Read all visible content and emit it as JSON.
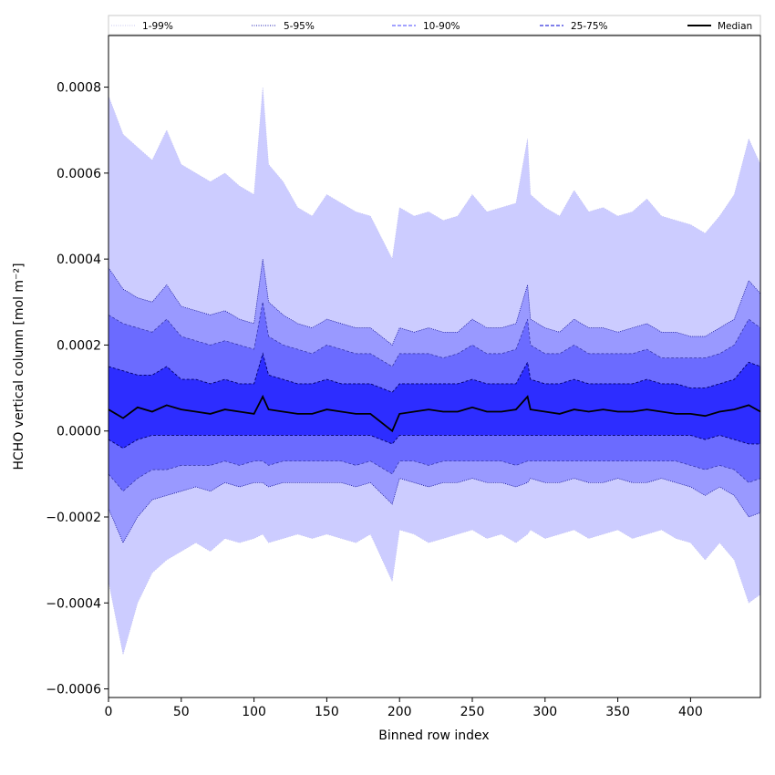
{
  "chart_data": {
    "type": "area",
    "title": "",
    "xlabel": "Binned row index",
    "ylabel": "HCHO vertical column [mol m⁻²]",
    "xlim": [
      0,
      448
    ],
    "ylim": [
      -0.00062,
      0.00092
    ],
    "xticks": [
      0,
      50,
      100,
      150,
      200,
      250,
      300,
      350,
      400
    ],
    "xtick_labels": [
      "0",
      "50",
      "100",
      "150",
      "200",
      "250",
      "300",
      "350",
      "400"
    ],
    "yticks": [
      -0.0006,
      -0.0004,
      -0.0002,
      0.0,
      0.0002,
      0.0004,
      0.0006,
      0.0008
    ],
    "ytick_labels": [
      "−0.0006",
      "−0.0004",
      "−0.0002",
      "0.0000",
      "0.0002",
      "0.0004",
      "0.0006",
      "0.0008"
    ],
    "grid": false,
    "legend_position": "top, spanning plot width",
    "legend": [
      {
        "label": "1-99%",
        "color": "#ccccff",
        "style": "dotted"
      },
      {
        "label": "5-95%",
        "color": "#00008b",
        "style": "dotted"
      },
      {
        "label": "10-90%",
        "color": "#6b6bff",
        "style": "dashed"
      },
      {
        "label": "25-75%",
        "color": "#3333dd",
        "style": "dashed"
      },
      {
        "label": "Median",
        "color": "#000000",
        "style": "solid"
      }
    ],
    "x": [
      0,
      10,
      20,
      30,
      40,
      50,
      60,
      70,
      80,
      90,
      100,
      106,
      110,
      120,
      130,
      140,
      150,
      160,
      170,
      180,
      195,
      200,
      210,
      220,
      230,
      240,
      250,
      260,
      270,
      280,
      288,
      290,
      300,
      310,
      320,
      330,
      340,
      350,
      360,
      370,
      380,
      390,
      400,
      410,
      420,
      430,
      440,
      448
    ],
    "bands": [
      {
        "name": "1-99%",
        "fill": "#ccccff",
        "upper": [
          0.00078,
          0.00069,
          0.00066,
          0.00063,
          0.0007,
          0.00062,
          0.0006,
          0.00058,
          0.0006,
          0.00057,
          0.00055,
          0.0008,
          0.00062,
          0.00058,
          0.00052,
          0.0005,
          0.00055,
          0.00053,
          0.00051,
          0.0005,
          0.0004,
          0.00052,
          0.0005,
          0.00051,
          0.00049,
          0.0005,
          0.00055,
          0.00051,
          0.00052,
          0.00053,
          0.00068,
          0.00055,
          0.00052,
          0.0005,
          0.00056,
          0.00051,
          0.00052,
          0.0005,
          0.00051,
          0.00054,
          0.0005,
          0.00049,
          0.00048,
          0.00046,
          0.0005,
          0.00055,
          0.00068,
          0.00062
        ],
        "lower": [
          -0.00035,
          -0.00052,
          -0.0004,
          -0.00033,
          -0.0003,
          -0.00028,
          -0.00026,
          -0.00028,
          -0.00025,
          -0.00026,
          -0.00025,
          -0.00024,
          -0.00026,
          -0.00025,
          -0.00024,
          -0.00025,
          -0.00024,
          -0.00025,
          -0.00026,
          -0.00024,
          -0.00035,
          -0.00023,
          -0.00024,
          -0.00026,
          -0.00025,
          -0.00024,
          -0.00023,
          -0.00025,
          -0.00024,
          -0.00026,
          -0.00024,
          -0.00023,
          -0.00025,
          -0.00024,
          -0.00023,
          -0.00025,
          -0.00024,
          -0.00023,
          -0.00025,
          -0.00024,
          -0.00023,
          -0.00025,
          -0.00026,
          -0.0003,
          -0.00026,
          -0.0003,
          -0.0004,
          -0.00038
        ]
      },
      {
        "name": "5-95%",
        "fill": "#9999ff",
        "upper": [
          0.00038,
          0.00033,
          0.00031,
          0.0003,
          0.00034,
          0.00029,
          0.00028,
          0.00027,
          0.00028,
          0.00026,
          0.00025,
          0.0004,
          0.0003,
          0.00027,
          0.00025,
          0.00024,
          0.00026,
          0.00025,
          0.00024,
          0.00024,
          0.0002,
          0.00024,
          0.00023,
          0.00024,
          0.00023,
          0.00023,
          0.00026,
          0.00024,
          0.00024,
          0.00025,
          0.00034,
          0.00026,
          0.00024,
          0.00023,
          0.00026,
          0.00024,
          0.00024,
          0.00023,
          0.00024,
          0.00025,
          0.00023,
          0.00023,
          0.00022,
          0.00022,
          0.00024,
          0.00026,
          0.00035,
          0.00032
        ],
        "lower": [
          -0.00018,
          -0.00026,
          -0.0002,
          -0.00016,
          -0.00015,
          -0.00014,
          -0.00013,
          -0.00014,
          -0.00012,
          -0.00013,
          -0.00012,
          -0.00012,
          -0.00013,
          -0.00012,
          -0.00012,
          -0.00012,
          -0.00012,
          -0.00012,
          -0.00013,
          -0.00012,
          -0.00017,
          -0.00011,
          -0.00012,
          -0.00013,
          -0.00012,
          -0.00012,
          -0.00011,
          -0.00012,
          -0.00012,
          -0.00013,
          -0.00012,
          -0.00011,
          -0.00012,
          -0.00012,
          -0.00011,
          -0.00012,
          -0.00012,
          -0.00011,
          -0.00012,
          -0.00012,
          -0.00011,
          -0.00012,
          -0.00013,
          -0.00015,
          -0.00013,
          -0.00015,
          -0.0002,
          -0.00019
        ]
      },
      {
        "name": "10-90%",
        "fill": "#6b6bff",
        "upper": [
          0.00027,
          0.00025,
          0.00024,
          0.00023,
          0.00026,
          0.00022,
          0.00021,
          0.0002,
          0.00021,
          0.0002,
          0.00019,
          0.0003,
          0.00022,
          0.0002,
          0.00019,
          0.00018,
          0.0002,
          0.00019,
          0.00018,
          0.00018,
          0.00015,
          0.00018,
          0.00018,
          0.00018,
          0.00017,
          0.00018,
          0.0002,
          0.00018,
          0.00018,
          0.00019,
          0.00026,
          0.0002,
          0.00018,
          0.00018,
          0.0002,
          0.00018,
          0.00018,
          0.00018,
          0.00018,
          0.00019,
          0.00017,
          0.00017,
          0.00017,
          0.00017,
          0.00018,
          0.0002,
          0.00026,
          0.00024
        ],
        "lower": [
          -0.0001,
          -0.00014,
          -0.00011,
          -9e-05,
          -9e-05,
          -8e-05,
          -8e-05,
          -8e-05,
          -7e-05,
          -8e-05,
          -7e-05,
          -7e-05,
          -8e-05,
          -7e-05,
          -7e-05,
          -7e-05,
          -7e-05,
          -7e-05,
          -8e-05,
          -7e-05,
          -0.0001,
          -7e-05,
          -7e-05,
          -8e-05,
          -7e-05,
          -7e-05,
          -7e-05,
          -7e-05,
          -7e-05,
          -8e-05,
          -7e-05,
          -7e-05,
          -7e-05,
          -7e-05,
          -7e-05,
          -7e-05,
          -7e-05,
          -7e-05,
          -7e-05,
          -7e-05,
          -7e-05,
          -7e-05,
          -8e-05,
          -9e-05,
          -8e-05,
          -9e-05,
          -0.00012,
          -0.00011
        ]
      },
      {
        "name": "25-75%",
        "fill": "#2d2dff",
        "upper": [
          0.00015,
          0.00014,
          0.00013,
          0.00013,
          0.00015,
          0.00012,
          0.00012,
          0.00011,
          0.00012,
          0.00011,
          0.00011,
          0.00018,
          0.00013,
          0.00012,
          0.00011,
          0.00011,
          0.00012,
          0.00011,
          0.00011,
          0.00011,
          9e-05,
          0.00011,
          0.00011,
          0.00011,
          0.00011,
          0.00011,
          0.00012,
          0.00011,
          0.00011,
          0.00011,
          0.00016,
          0.00012,
          0.00011,
          0.00011,
          0.00012,
          0.00011,
          0.00011,
          0.00011,
          0.00011,
          0.00012,
          0.00011,
          0.00011,
          0.0001,
          0.0001,
          0.00011,
          0.00012,
          0.00016,
          0.00015
        ],
        "lower": [
          -2e-05,
          -4e-05,
          -2e-05,
          -1e-05,
          -1e-05,
          -1e-05,
          -1e-05,
          -1e-05,
          -1e-05,
          -1e-05,
          -1e-05,
          -1e-05,
          -1e-05,
          -1e-05,
          -1e-05,
          -1e-05,
          -1e-05,
          -1e-05,
          -1e-05,
          -1e-05,
          -3e-05,
          -1e-05,
          -1e-05,
          -1e-05,
          -1e-05,
          -1e-05,
          -1e-05,
          -1e-05,
          -1e-05,
          -1e-05,
          -1e-05,
          -1e-05,
          -1e-05,
          -1e-05,
          -1e-05,
          -1e-05,
          -1e-05,
          -1e-05,
          -1e-05,
          -1e-05,
          -1e-05,
          -1e-05,
          -1e-05,
          -2e-05,
          -1e-05,
          -2e-05,
          -3e-05,
          -3e-05
        ]
      }
    ],
    "median": [
      5e-05,
      3e-05,
      5.5e-05,
      4.5e-05,
      6e-05,
      5e-05,
      4.5e-05,
      4e-05,
      5e-05,
      4.5e-05,
      4e-05,
      8e-05,
      5e-05,
      4.5e-05,
      4e-05,
      4e-05,
      5e-05,
      4.5e-05,
      4e-05,
      4e-05,
      0.0,
      4e-05,
      4.5e-05,
      5e-05,
      4.5e-05,
      4.5e-05,
      5.5e-05,
      4.5e-05,
      4.5e-05,
      5e-05,
      8e-05,
      5e-05,
      4.5e-05,
      4e-05,
      5e-05,
      4.5e-05,
      5e-05,
      4.5e-05,
      4.5e-05,
      5e-05,
      4.5e-05,
      4e-05,
      4e-05,
      3.5e-05,
      4.5e-05,
      5e-05,
      6e-05,
      4.5e-05
    ]
  }
}
